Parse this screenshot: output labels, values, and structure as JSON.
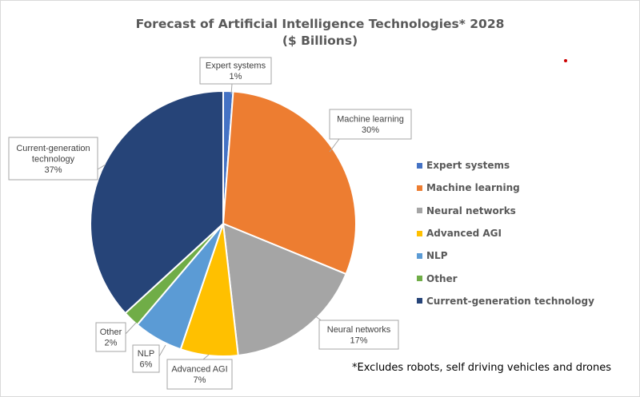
{
  "chart_data": {
    "type": "pie",
    "title_line1": "Forecast of Artificial Intelligence Technologies* 2028",
    "title_line2": "($ Billions)",
    "slices": [
      {
        "label": "Expert systems",
        "percent_label": "1%",
        "value": 1.2,
        "color": "#4472c4"
      },
      {
        "label": "Machine learning",
        "percent_label": "30%",
        "value": 30,
        "color": "#ed7d31"
      },
      {
        "label": "Neural networks",
        "percent_label": "17%",
        "value": 17,
        "color": "#a5a5a5"
      },
      {
        "label": "Advanced AGI",
        "percent_label": "7%",
        "value": 7,
        "color": "#ffc000"
      },
      {
        "label": "NLP",
        "percent_label": "6%",
        "value": 6,
        "color": "#5b9bd5"
      },
      {
        "label": "Other",
        "percent_label": "2%",
        "value": 2,
        "color": "#70ad47"
      },
      {
        "label": "Current-generation technology",
        "percent_label": "37%",
        "value": 36.8,
        "color": "#264478"
      }
    ],
    "legend_position": "right",
    "footnote": "*Excludes robots, self driving vehicles and drones"
  }
}
